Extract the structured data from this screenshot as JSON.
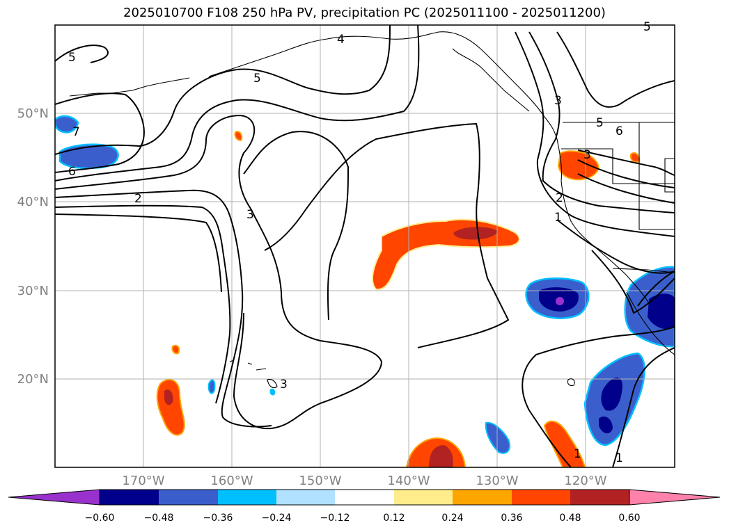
{
  "title": "2025010700 F108 250 hPa PV, precipitation PC (2025011100 - 2025011200)",
  "map": {
    "lat_labels": [
      "50°N",
      "40°N",
      "30°N",
      "20°N"
    ],
    "lon_labels": [
      "170°W",
      "160°W",
      "150°W",
      "140°W",
      "130°W",
      "120°W"
    ],
    "contour_labels": [
      "5",
      "5",
      "4",
      "7",
      "6",
      "2",
      "3",
      "3",
      "3",
      "3",
      "5",
      "6",
      "2",
      "1",
      "1",
      "1",
      "5"
    ]
  },
  "colorbar": {
    "ticks": [
      "−0.60",
      "−0.48",
      "−0.36",
      "−0.24",
      "−0.12",
      "0.12",
      "0.24",
      "0.36",
      "0.48",
      "0.60"
    ],
    "colors": [
      "#9932cc",
      "#00008b",
      "#3a5fcd",
      "#00bfff",
      "#b0e2ff",
      "#ffffff",
      "#ffec8b",
      "#ffa500",
      "#ff4500",
      "#b22222",
      "#ff82ab"
    ]
  }
}
